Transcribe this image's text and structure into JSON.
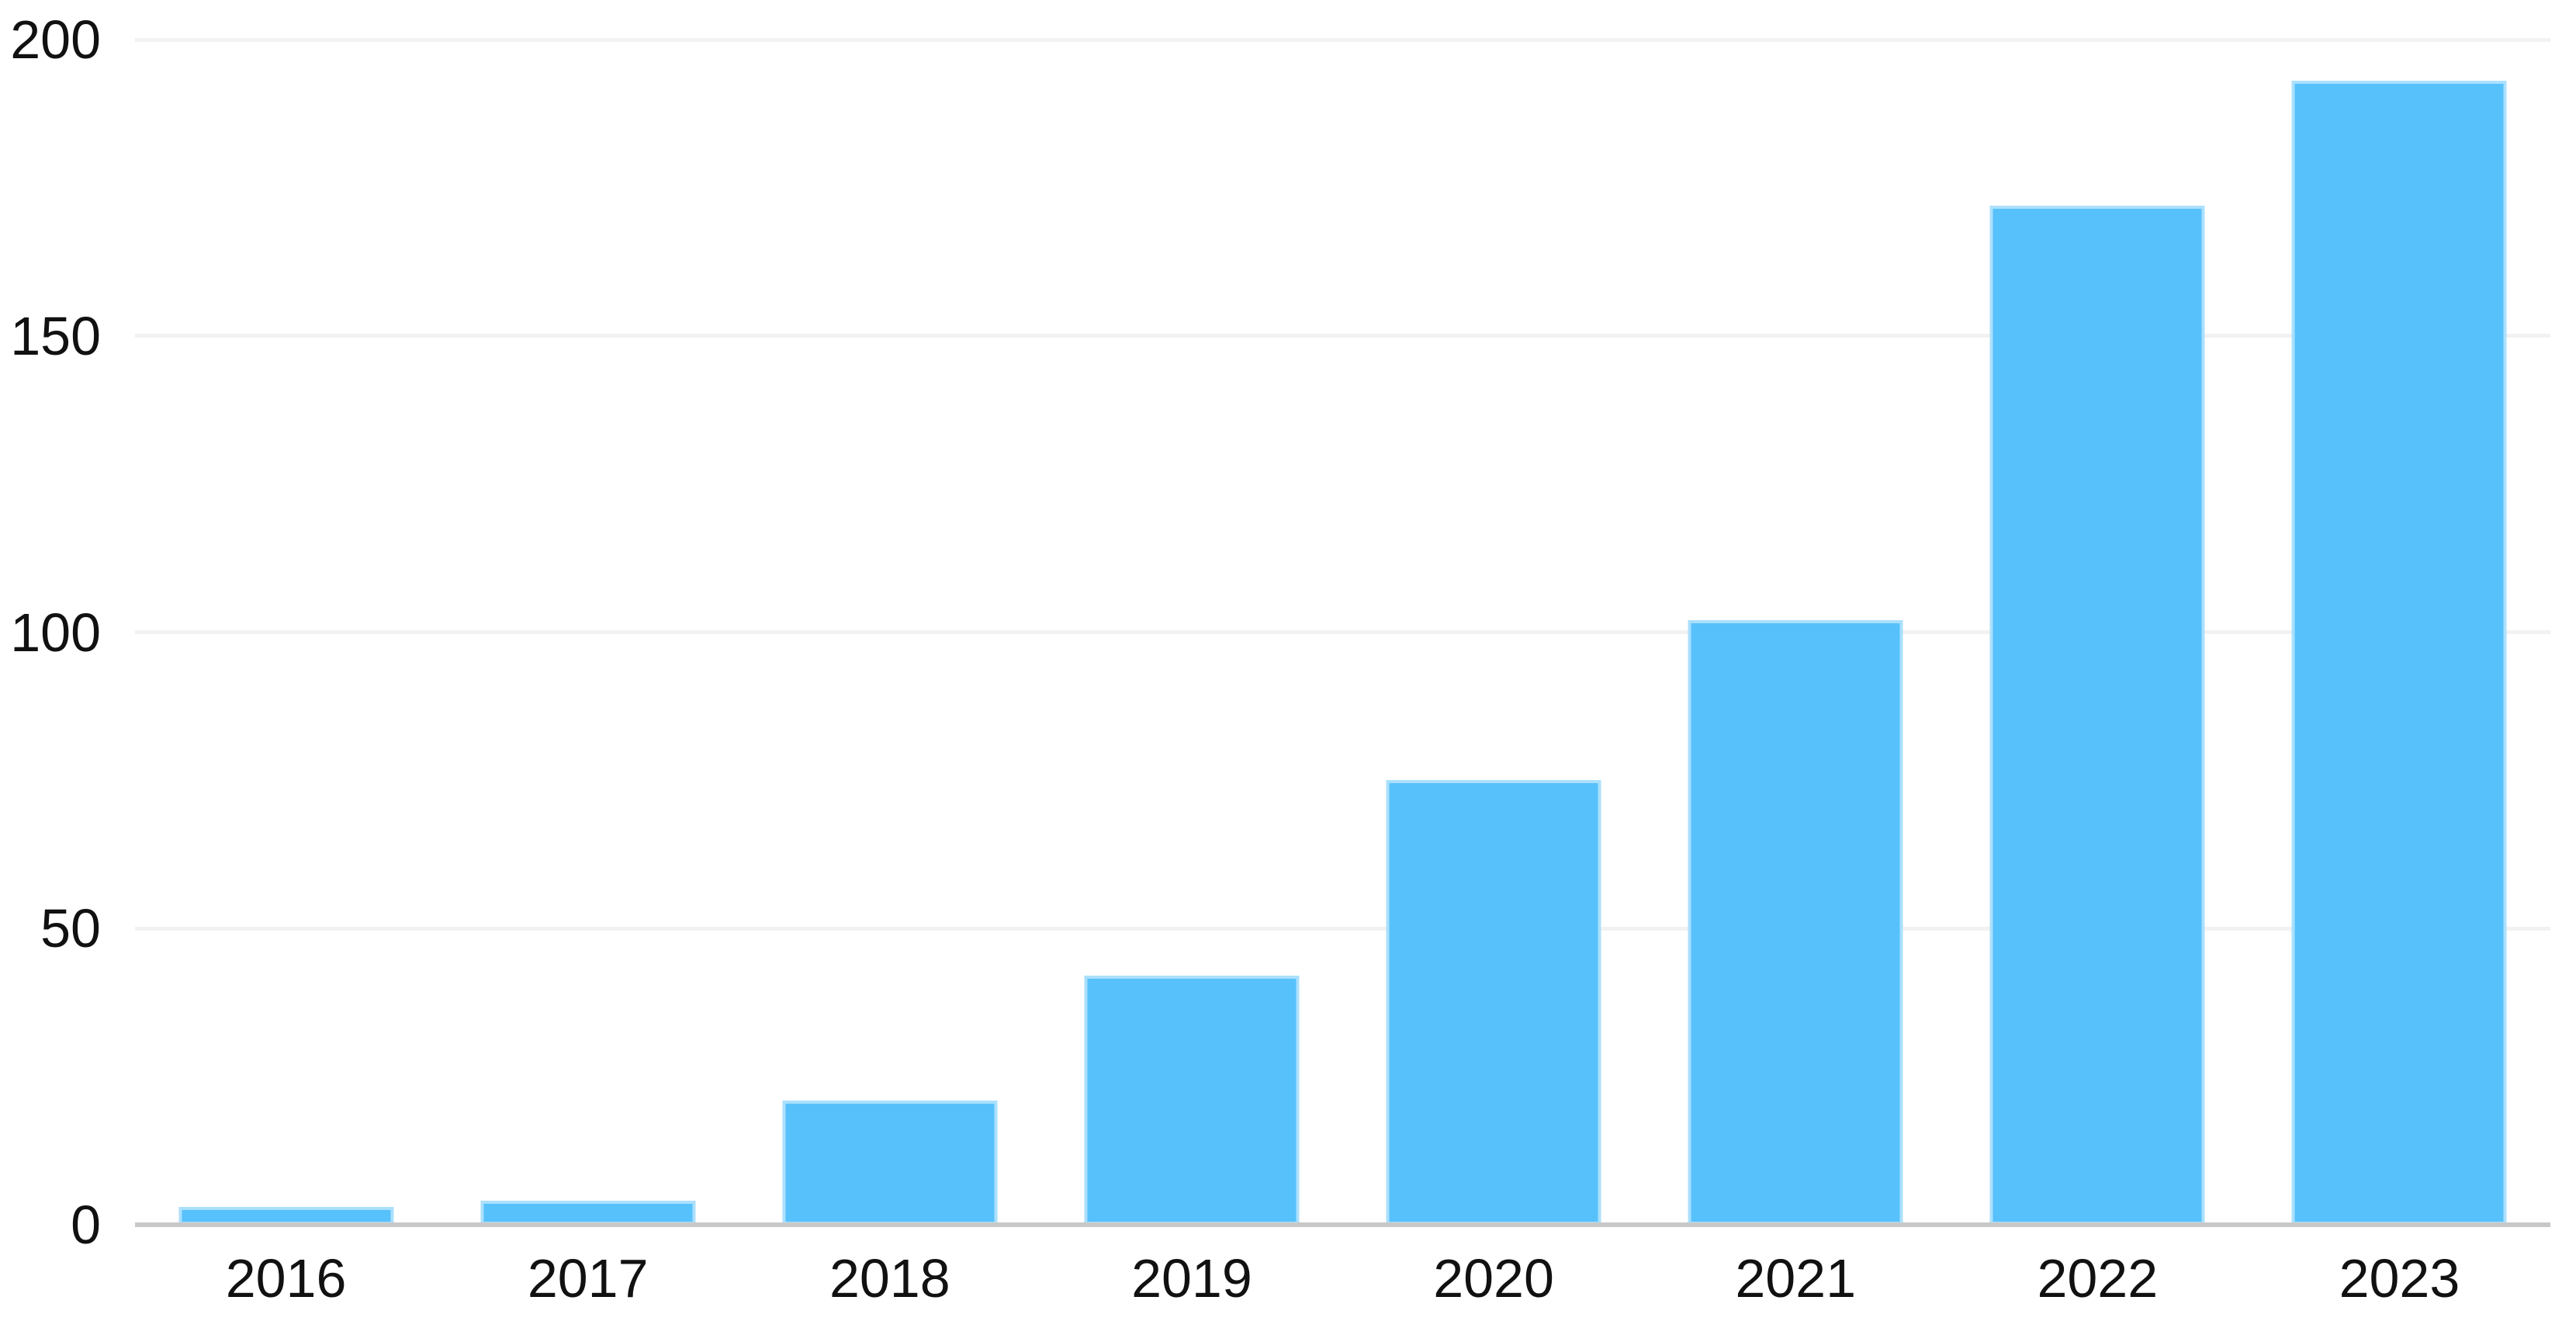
{
  "chart_data": {
    "type": "bar",
    "title": "",
    "xlabel": "",
    "ylabel": "",
    "legend": "none",
    "grid": "horizontal-only",
    "categories": [
      "2016",
      "2017",
      "2018",
      "2019",
      "2020",
      "2021",
      "2022",
      "2023"
    ],
    "values": [
      3,
      4,
      21,
      42,
      75,
      102,
      172,
      193
    ],
    "ylim": [
      0,
      200
    ],
    "yticks": [
      0,
      50,
      100,
      150,
      200
    ],
    "ytick_labels": [
      "0",
      "50",
      "100",
      "150",
      "200"
    ],
    "colors": {
      "bar": "#57C1FB",
      "bar_edge_highlight": "rgba(255,255,255,0.5)",
      "gridline": "#F2F2F2",
      "axis_line": "#C8C8C8",
      "tick_label": "#111111",
      "background": "#FFFFFF"
    }
  }
}
